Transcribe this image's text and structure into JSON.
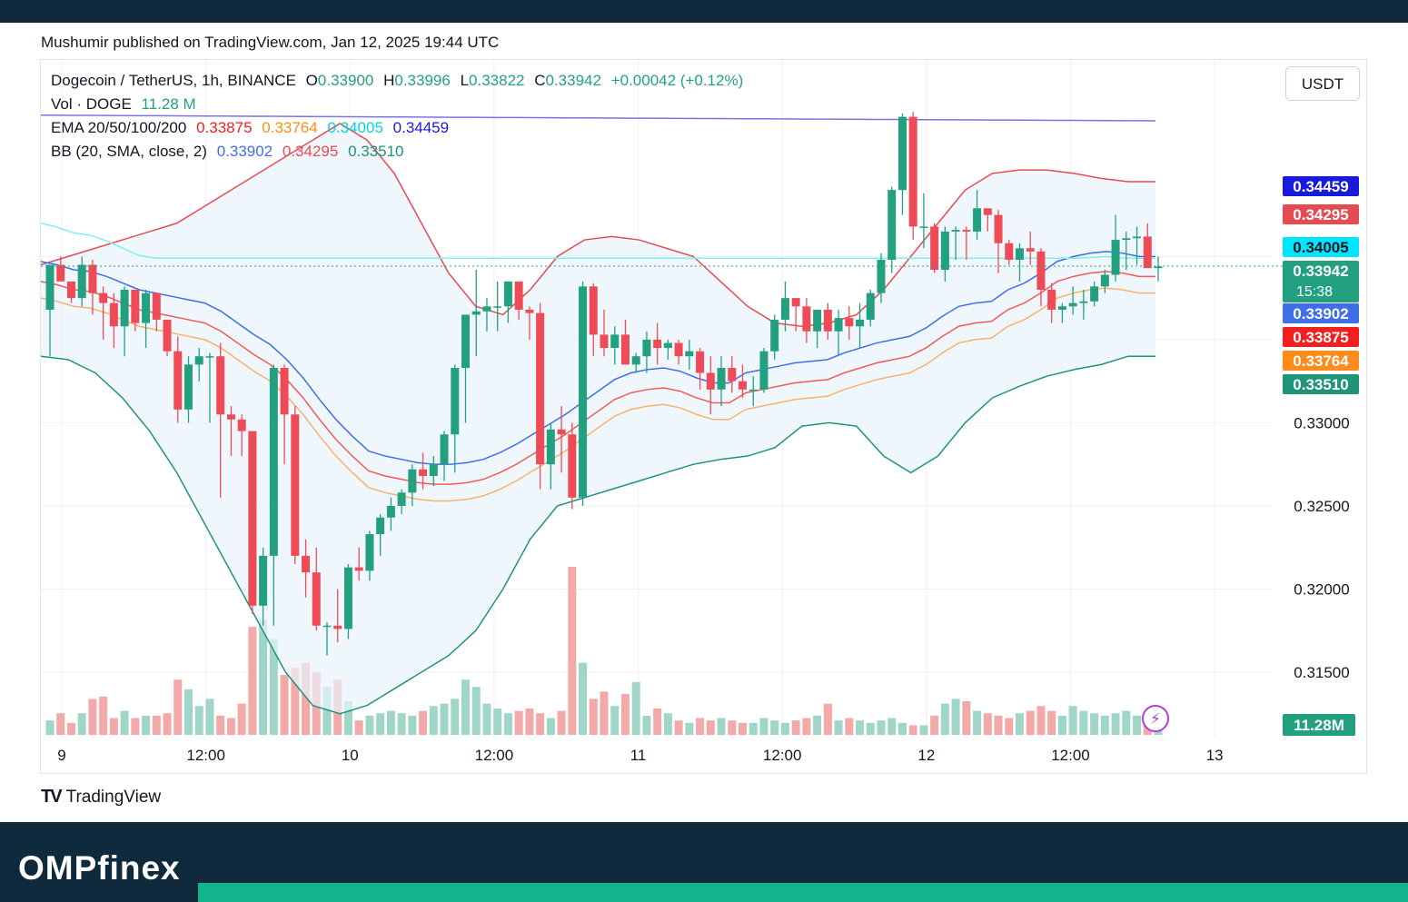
{
  "header": {
    "published": "Mushumir published on TradingView.com, Jan 12, 2025 19:44 UTC"
  },
  "legend": {
    "symbol": "Dogecoin / TetherUS, 1h, BINANCE",
    "o_label": "O",
    "o": "0.33900",
    "h_label": "H",
    "h": "0.33996",
    "l_label": "L",
    "l": "0.33822",
    "c_label": "C",
    "c": "0.33942",
    "change": "+0.00042 (+0.12%)",
    "vol_label": "Vol · DOGE",
    "vol": "11.28 M",
    "ema_label": "EMA 20/50/100/200",
    "ema20": "0.33875",
    "ema50": "0.33764",
    "ema100": "0.34005",
    "ema200": "0.34459",
    "bb_label": "BB (20, SMA, close, 2)",
    "bb_basis": "0.33902",
    "bb_upper": "0.34295",
    "bb_lower": "0.33510"
  },
  "currency_button": "USDT",
  "price_tags": [
    {
      "text": "0.34459",
      "color": "#1a1adc",
      "value": 0.34459
    },
    {
      "text": "0.34295",
      "color": "#e54c52",
      "value": 0.34295
    },
    {
      "text": "0.34005",
      "color": "#00e5ff",
      "value": 0.34005,
      "dark": true
    },
    {
      "text": "0.33942",
      "color": "#22a07f",
      "value": 0.33942,
      "sub": "15:38"
    },
    {
      "text": "0.33902",
      "color": "#3f6ee8",
      "value": 0.33902
    },
    {
      "text": "0.33875",
      "color": "#f21f1f",
      "value": 0.33875
    },
    {
      "text": "0.33764",
      "color": "#ff8c1a",
      "value": 0.33764
    },
    {
      "text": "0.33510",
      "color": "#1f9478",
      "value": 0.3351
    }
  ],
  "volume_tag": {
    "text": "11.28M",
    "color": "#22a07f"
  },
  "tradingview_logo": "TradingView",
  "footer": {
    "brand": "OMPfinex"
  },
  "chart_data": {
    "type": "candlestick",
    "title": "Dogecoin / TetherUS, 1h, BINANCE",
    "y_axis": {
      "ticks": [
        0.315,
        0.32,
        0.325,
        0.33
      ],
      "tick_labels": [
        "0.31500",
        "0.32000",
        "0.32500",
        "0.33000"
      ],
      "range": [
        0.3115,
        0.3472
      ],
      "position": "right"
    },
    "x_axis": {
      "tick_labels": [
        "9",
        "12:00",
        "10",
        "12:00",
        "11",
        "12:00",
        "12",
        "12:00",
        "13"
      ],
      "tick_hours": [
        0,
        12,
        24,
        36,
        48,
        60,
        72,
        84,
        96
      ]
    },
    "grid": true,
    "last_price": 0.33942,
    "candles": [
      [
        0.3368,
        0.3395,
        0.334,
        0.3395
      ],
      [
        0.3395,
        0.34,
        0.3385,
        0.3385
      ],
      [
        0.3385,
        0.3385,
        0.3372,
        0.3375
      ],
      [
        0.3375,
        0.34,
        0.337,
        0.3395
      ],
      [
        0.3395,
        0.3398,
        0.3365,
        0.3378
      ],
      [
        0.3378,
        0.3382,
        0.335,
        0.3372
      ],
      [
        0.3372,
        0.3378,
        0.3345,
        0.3358
      ],
      [
        0.3358,
        0.3382,
        0.334,
        0.338
      ],
      [
        0.338,
        0.338,
        0.3355,
        0.336
      ],
      [
        0.336,
        0.338,
        0.3345,
        0.3378
      ],
      [
        0.3378,
        0.3378,
        0.3355,
        0.3362
      ],
      [
        0.3362,
        0.3362,
        0.334,
        0.3343
      ],
      [
        0.3343,
        0.3352,
        0.33,
        0.3308
      ],
      [
        0.3308,
        0.334,
        0.33,
        0.3335
      ],
      [
        0.3335,
        0.3345,
        0.3325,
        0.334
      ],
      [
        0.334,
        0.3342,
        0.33,
        0.334
      ],
      [
        0.334,
        0.3348,
        0.3255,
        0.3305
      ],
      [
        0.3305,
        0.331,
        0.328,
        0.3302
      ],
      [
        0.3302,
        0.3305,
        0.328,
        0.3295
      ],
      [
        0.3295,
        0.3295,
        0.3185,
        0.319
      ],
      [
        0.319,
        0.3225,
        0.3178,
        0.322
      ],
      [
        0.322,
        0.3335,
        0.3178,
        0.3333
      ],
      [
        0.3333,
        0.3335,
        0.3275,
        0.3305
      ],
      [
        0.3305,
        0.331,
        0.3215,
        0.322
      ],
      [
        0.322,
        0.323,
        0.3195,
        0.321
      ],
      [
        0.321,
        0.3225,
        0.3175,
        0.3178
      ],
      [
        0.3178,
        0.318,
        0.316,
        0.3178
      ],
      [
        0.3178,
        0.32,
        0.3168,
        0.3176
      ],
      [
        0.3176,
        0.3215,
        0.317,
        0.3213
      ],
      [
        0.3213,
        0.3225,
        0.3205,
        0.3211
      ],
      [
        0.3211,
        0.3235,
        0.3205,
        0.3233
      ],
      [
        0.3233,
        0.3245,
        0.322,
        0.3243
      ],
      [
        0.3243,
        0.3255,
        0.3235,
        0.325
      ],
      [
        0.325,
        0.326,
        0.3245,
        0.3258
      ],
      [
        0.3258,
        0.3275,
        0.325,
        0.3272
      ],
      [
        0.3272,
        0.3282,
        0.326,
        0.3268
      ],
      [
        0.3268,
        0.328,
        0.3262,
        0.3275
      ],
      [
        0.3275,
        0.3295,
        0.3265,
        0.3293
      ],
      [
        0.3293,
        0.3335,
        0.327,
        0.3333
      ],
      [
        0.3333,
        0.3365,
        0.33,
        0.3365
      ],
      [
        0.3365,
        0.3392,
        0.334,
        0.3367
      ],
      [
        0.3367,
        0.3375,
        0.3355,
        0.337
      ],
      [
        0.337,
        0.3385,
        0.3355,
        0.337
      ],
      [
        0.337,
        0.3385,
        0.336,
        0.3385
      ],
      [
        0.3385,
        0.3385,
        0.3362,
        0.3368
      ],
      [
        0.3368,
        0.337,
        0.335,
        0.3366
      ],
      [
        0.3366,
        0.3372,
        0.326,
        0.3275
      ],
      [
        0.3275,
        0.33,
        0.326,
        0.3296
      ],
      [
        0.3296,
        0.331,
        0.327,
        0.3293
      ],
      [
        0.3293,
        0.33,
        0.3248,
        0.3255
      ],
      [
        0.3255,
        0.3385,
        0.325,
        0.3382
      ],
      [
        0.3382,
        0.3384,
        0.334,
        0.3353
      ],
      [
        0.3353,
        0.3368,
        0.334,
        0.3345
      ],
      [
        0.3345,
        0.3358,
        0.3335,
        0.3353
      ],
      [
        0.3353,
        0.3362,
        0.3335,
        0.3335
      ],
      [
        0.3335,
        0.3342,
        0.333,
        0.334
      ],
      [
        0.334,
        0.3355,
        0.333,
        0.335
      ],
      [
        0.335,
        0.336,
        0.3335,
        0.3345
      ],
      [
        0.3345,
        0.335,
        0.3338,
        0.3348
      ],
      [
        0.3348,
        0.335,
        0.3335,
        0.334
      ],
      [
        0.334,
        0.335,
        0.3332,
        0.3343
      ],
      [
        0.3343,
        0.3345,
        0.332,
        0.333
      ],
      [
        0.333,
        0.334,
        0.3305,
        0.332
      ],
      [
        0.332,
        0.334,
        0.331,
        0.3333
      ],
      [
        0.3333,
        0.334,
        0.3318,
        0.3325
      ],
      [
        0.3325,
        0.3335,
        0.3315,
        0.332
      ],
      [
        0.332,
        0.3328,
        0.331,
        0.332
      ],
      [
        0.332,
        0.3345,
        0.3318,
        0.3343
      ],
      [
        0.3343,
        0.3365,
        0.3338,
        0.3362
      ],
      [
        0.3362,
        0.3385,
        0.3355,
        0.3375
      ],
      [
        0.3375,
        0.3375,
        0.3355,
        0.337
      ],
      [
        0.337,
        0.3375,
        0.3348,
        0.3355
      ],
      [
        0.3355,
        0.3368,
        0.3345,
        0.3368
      ],
      [
        0.3368,
        0.3372,
        0.335,
        0.3355
      ],
      [
        0.3355,
        0.3368,
        0.334,
        0.3363
      ],
      [
        0.3363,
        0.337,
        0.335,
        0.3358
      ],
      [
        0.3358,
        0.3372,
        0.3345,
        0.3362
      ],
      [
        0.3362,
        0.338,
        0.3358,
        0.3378
      ],
      [
        0.3378,
        0.3402,
        0.3372,
        0.3398
      ],
      [
        0.3398,
        0.3442,
        0.339,
        0.344
      ],
      [
        0.344,
        0.3486,
        0.3425,
        0.3484
      ],
      [
        0.3484,
        0.3487,
        0.341,
        0.3418
      ],
      [
        0.3418,
        0.3438,
        0.3405,
        0.3418
      ],
      [
        0.3418,
        0.342,
        0.339,
        0.3392
      ],
      [
        0.3392,
        0.3418,
        0.3385,
        0.3415
      ],
      [
        0.3415,
        0.3418,
        0.3398,
        0.3416
      ],
      [
        0.3416,
        0.3418,
        0.3398,
        0.3415
      ],
      [
        0.3415,
        0.344,
        0.341,
        0.3429
      ],
      [
        0.3429,
        0.3428,
        0.3415,
        0.3425
      ],
      [
        0.3425,
        0.3428,
        0.339,
        0.3408
      ],
      [
        0.3408,
        0.341,
        0.3395,
        0.3398
      ],
      [
        0.3398,
        0.3408,
        0.3385,
        0.3405
      ],
      [
        0.3405,
        0.3415,
        0.3395,
        0.3403
      ],
      [
        0.3403,
        0.3405,
        0.337,
        0.338
      ],
      [
        0.338,
        0.3384,
        0.336,
        0.3368
      ],
      [
        0.3368,
        0.3372,
        0.336,
        0.337
      ],
      [
        0.337,
        0.3382,
        0.3365,
        0.3372
      ],
      [
        0.3372,
        0.338,
        0.3362,
        0.3373
      ],
      [
        0.3373,
        0.3385,
        0.337,
        0.3382
      ],
      [
        0.3382,
        0.3392,
        0.3378,
        0.3389
      ],
      [
        0.3389,
        0.3425,
        0.3385,
        0.341
      ],
      [
        0.341,
        0.3415,
        0.3392,
        0.3411
      ],
      [
        0.3411,
        0.3418,
        0.3395,
        0.3412
      ],
      [
        0.3412,
        0.342,
        0.3395,
        0.3393
      ],
      [
        0.3393,
        0.34,
        0.3385,
        0.3394
      ]
    ],
    "volume": [
      12,
      18,
      10,
      18,
      30,
      32,
      14,
      20,
      14,
      16,
      16,
      18,
      46,
      38,
      24,
      30,
      16,
      14,
      26,
      90,
      96,
      80,
      50,
      56,
      60,
      52,
      40,
      46,
      28,
      12,
      16,
      18,
      20,
      18,
      16,
      20,
      24,
      26,
      30,
      46,
      40,
      26,
      22,
      18,
      20,
      22,
      18,
      14,
      20,
      140,
      60,
      30,
      36,
      24,
      34,
      44,
      16,
      22,
      18,
      12,
      10,
      14,
      12,
      14,
      12,
      10,
      10,
      14,
      12,
      10,
      12,
      14,
      16,
      26,
      12,
      14,
      12,
      10,
      12,
      14,
      10,
      8,
      8,
      16,
      26,
      30,
      28,
      20,
      18,
      16,
      14,
      18,
      20,
      24,
      20,
      16,
      24,
      20,
      18,
      16,
      18,
      20,
      16,
      18,
      18,
      18,
      36,
      18,
      14,
      10,
      6
    ],
    "ema20": [
      0.3385,
      0.3383,
      0.338,
      0.3379,
      0.3376,
      0.3372,
      0.3368,
      0.3366,
      0.3364,
      0.3362,
      0.336,
      0.3355,
      0.3348,
      0.3341,
      0.3335,
      0.3326,
      0.3315,
      0.3302,
      0.329,
      0.328,
      0.3271,
      0.3268,
      0.3266,
      0.3264,
      0.3263,
      0.3263,
      0.3264,
      0.3266,
      0.327,
      0.3275,
      0.3281,
      0.3287,
      0.3293,
      0.33,
      0.3307,
      0.3314,
      0.3318,
      0.332,
      0.3321,
      0.3319,
      0.3315,
      0.3312,
      0.3312,
      0.3318,
      0.332,
      0.3322,
      0.3324,
      0.3325,
      0.3326,
      0.333,
      0.3333,
      0.3336,
      0.3338,
      0.334,
      0.3345,
      0.3352,
      0.3358,
      0.336,
      0.3361,
      0.3368,
      0.3372,
      0.3378,
      0.3385,
      0.3388,
      0.339,
      0.3391,
      0.339,
      0.3388,
      0.3388
    ],
    "bb_upper": [
      0.3395,
      0.34,
      0.3405,
      0.341,
      0.3415,
      0.342,
      0.343,
      0.344,
      0.345,
      0.346,
      0.347,
      0.348,
      0.347,
      0.345,
      0.342,
      0.339,
      0.337,
      0.3365,
      0.338,
      0.34,
      0.341,
      0.3412,
      0.341,
      0.3405,
      0.34,
      0.3385,
      0.337,
      0.336,
      0.3358,
      0.336,
      0.3365,
      0.338,
      0.34,
      0.342,
      0.344,
      0.345,
      0.3452,
      0.3452,
      0.345,
      0.3447,
      0.3445,
      0.3445
    ],
    "bb_lower": [
      0.334,
      0.3338,
      0.333,
      0.3315,
      0.3295,
      0.327,
      0.324,
      0.321,
      0.318,
      0.315,
      0.313,
      0.3125,
      0.313,
      0.314,
      0.315,
      0.316,
      0.3175,
      0.32,
      0.323,
      0.325,
      0.3255,
      0.326,
      0.3265,
      0.327,
      0.3275,
      0.3278,
      0.328,
      0.3285,
      0.3298,
      0.33,
      0.3298,
      0.328,
      0.327,
      0.328,
      0.33,
      0.3315,
      0.3322,
      0.3328,
      0.3332,
      0.3335,
      0.334,
      0.334
    ]
  }
}
